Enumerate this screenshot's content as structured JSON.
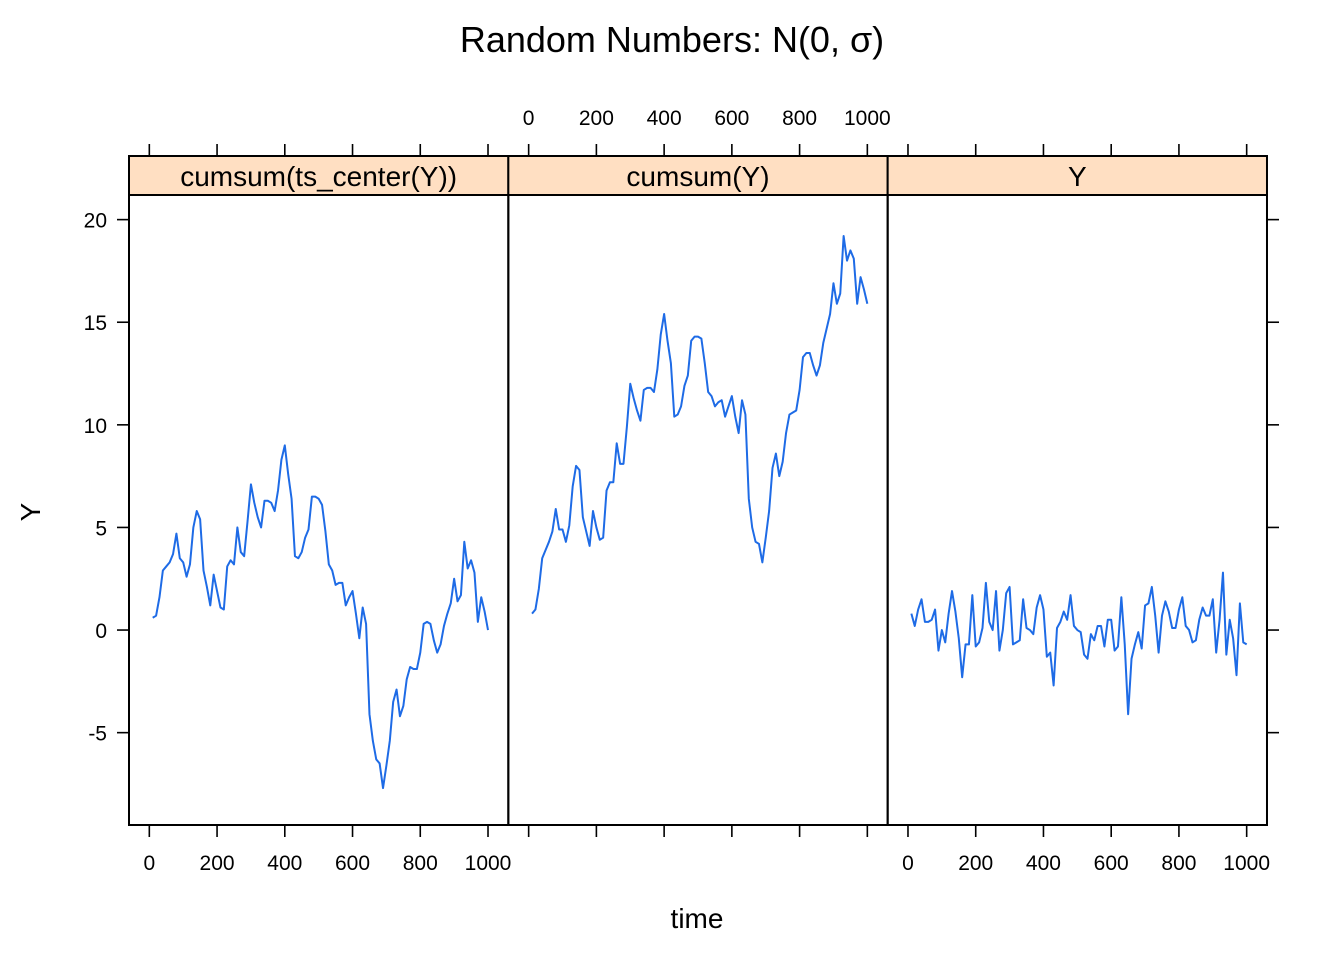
{
  "chart_data": {
    "type": "line",
    "title": "Random Numbers: N(0, σ)",
    "xlabel": "time",
    "ylabel": "Y",
    "xlim": [
      -60,
      1060
    ],
    "ylim": [
      -9.5,
      21.2
    ],
    "x_ticks": [
      0,
      200,
      400,
      600,
      800,
      1000
    ],
    "x_tick_labels": [
      "0",
      "200",
      "400",
      "600",
      "800",
      "1000"
    ],
    "y_ticks": [
      -5,
      0,
      5,
      10,
      15,
      20
    ],
    "y_tick_labels": [
      "-5",
      "0",
      "5",
      "10",
      "15",
      "20"
    ],
    "grid": false,
    "legend": "none",
    "line_color": "#1E6BE6",
    "strip_color": "#FFDFC2",
    "panels": [
      {
        "name": "cumsum(ts_center(Y))",
        "x": [
          10,
          20,
          30,
          40,
          50,
          60,
          70,
          80,
          90,
          100,
          110,
          120,
          130,
          140,
          150,
          160,
          170,
          180,
          190,
          200,
          210,
          220,
          230,
          240,
          250,
          260,
          270,
          280,
          290,
          300,
          310,
          320,
          330,
          340,
          350,
          360,
          370,
          380,
          390,
          400,
          410,
          420,
          430,
          440,
          450,
          460,
          470,
          480,
          490,
          500,
          510,
          520,
          530,
          540,
          550,
          560,
          570,
          580,
          590,
          600,
          610,
          620,
          630,
          640,
          650,
          660,
          670,
          680,
          690,
          700,
          710,
          720,
          730,
          740,
          750,
          760,
          770,
          780,
          790,
          800,
          810,
          820,
          830,
          840,
          850,
          860,
          870,
          880,
          890,
          900,
          910,
          920,
          930,
          940,
          950,
          960,
          970,
          980,
          990,
          1000
        ],
        "y": [
          0.6,
          0.7,
          1.6,
          2.9,
          3.1,
          3.3,
          3.7,
          4.7,
          3.5,
          3.3,
          2.6,
          3.2,
          5.0,
          5.8,
          5.4,
          2.9,
          2.1,
          1.2,
          2.7,
          1.9,
          1.1,
          1.0,
          3.1,
          3.4,
          3.2,
          5.0,
          3.8,
          3.6,
          5.3,
          7.1,
          6.2,
          5.5,
          5.0,
          6.3,
          6.3,
          6.2,
          5.8,
          6.8,
          8.3,
          9.0,
          7.6,
          6.4,
          3.6,
          3.5,
          3.8,
          4.5,
          4.9,
          6.5,
          6.5,
          6.4,
          6.1,
          4.8,
          3.2,
          2.9,
          2.2,
          2.3,
          2.3,
          1.2,
          1.6,
          1.9,
          0.8,
          -0.4,
          1.1,
          0.3,
          -4.1,
          -5.4,
          -6.3,
          -6.5,
          -7.7,
          -6.6,
          -5.4,
          -3.5,
          -2.9,
          -4.2,
          -3.7,
          -2.4,
          -1.8,
          -1.9,
          -1.9,
          -1.1,
          0.3,
          0.4,
          0.3,
          -0.5,
          -1.1,
          -0.7,
          0.2,
          0.8,
          1.3,
          2.5,
          1.4,
          1.7,
          4.3,
          3.0,
          3.4,
          2.8,
          0.4,
          1.6,
          0.9,
          0.0
        ]
      },
      {
        "name": "cumsum(Y)",
        "x": [
          10,
          20,
          30,
          40,
          50,
          60,
          70,
          80,
          90,
          100,
          110,
          120,
          130,
          140,
          150,
          160,
          170,
          180,
          190,
          200,
          210,
          220,
          230,
          240,
          250,
          260,
          270,
          280,
          290,
          300,
          310,
          320,
          330,
          340,
          350,
          360,
          370,
          380,
          390,
          400,
          410,
          420,
          430,
          440,
          450,
          460,
          470,
          480,
          490,
          500,
          510,
          520,
          530,
          540,
          550,
          560,
          570,
          580,
          590,
          600,
          610,
          620,
          630,
          640,
          650,
          660,
          670,
          680,
          690,
          700,
          710,
          720,
          730,
          740,
          750,
          760,
          770,
          780,
          790,
          800,
          810,
          820,
          830,
          840,
          850,
          860,
          870,
          880,
          890,
          900,
          910,
          920,
          930,
          940,
          950,
          960,
          970,
          980,
          990,
          1000
        ],
        "y": [
          0.8,
          1.0,
          2.0,
          3.5,
          3.9,
          4.3,
          4.8,
          5.9,
          4.9,
          4.9,
          4.3,
          5.1,
          7.0,
          8.0,
          7.8,
          5.5,
          4.8,
          4.1,
          5.8,
          5.0,
          4.4,
          4.5,
          6.8,
          7.2,
          7.2,
          9.1,
          8.1,
          8.1,
          9.9,
          12.0,
          11.3,
          10.7,
          10.2,
          11.7,
          11.8,
          11.8,
          11.6,
          12.7,
          14.4,
          15.4,
          14.1,
          13.0,
          10.4,
          10.5,
          10.9,
          11.9,
          12.4,
          14.1,
          14.3,
          14.3,
          14.2,
          13.0,
          11.6,
          11.4,
          10.9,
          11.1,
          11.2,
          10.4,
          10.9,
          11.4,
          10.4,
          9.6,
          11.2,
          10.5,
          6.4,
          5.0,
          4.3,
          4.2,
          3.3,
          4.5,
          5.8,
          7.9,
          8.6,
          7.5,
          8.2,
          9.6,
          10.5,
          10.6,
          10.7,
          11.7,
          13.3,
          13.5,
          13.5,
          12.9,
          12.4,
          12.9,
          14.0,
          14.7,
          15.4,
          16.9,
          15.9,
          16.4,
          19.2,
          18.0,
          18.5,
          18.1,
          15.9,
          17.2,
          16.6,
          15.9
        ]
      },
      {
        "name": "Y",
        "x": [
          10,
          20,
          30,
          40,
          50,
          60,
          70,
          80,
          90,
          100,
          110,
          120,
          130,
          140,
          150,
          160,
          170,
          180,
          190,
          200,
          210,
          220,
          230,
          240,
          250,
          260,
          270,
          280,
          290,
          300,
          310,
          320,
          330,
          340,
          350,
          360,
          370,
          380,
          390,
          400,
          410,
          420,
          430,
          440,
          450,
          460,
          470,
          480,
          490,
          500,
          510,
          520,
          530,
          540,
          550,
          560,
          570,
          580,
          590,
          600,
          610,
          620,
          630,
          640,
          650,
          660,
          670,
          680,
          690,
          700,
          710,
          720,
          730,
          740,
          750,
          760,
          770,
          780,
          790,
          800,
          810,
          820,
          830,
          840,
          850,
          860,
          870,
          880,
          890,
          900,
          910,
          920,
          930,
          940,
          950,
          960,
          970,
          980,
          990,
          1000
        ],
        "y": [
          0.8,
          0.2,
          1.0,
          1.5,
          0.4,
          0.4,
          0.5,
          1.0,
          -1.0,
          -0.0,
          -0.6,
          0.8,
          1.9,
          0.9,
          -0.4,
          -2.3,
          -0.7,
          -0.7,
          1.7,
          -0.8,
          -0.6,
          0.1,
          2.3,
          0.4,
          0.0,
          1.9,
          -1.0,
          0.0,
          1.8,
          2.1,
          -0.7,
          -0.6,
          -0.5,
          1.5,
          0.1,
          -0.0,
          -0.2,
          1.1,
          1.7,
          1.0,
          -1.3,
          -1.1,
          -2.7,
          0.1,
          0.4,
          0.9,
          0.5,
          1.7,
          0.2,
          0.0,
          -0.1,
          -1.2,
          -1.4,
          -0.2,
          -0.5,
          0.2,
          0.2,
          -0.8,
          0.5,
          0.5,
          -1.0,
          -0.8,
          1.6,
          -0.7,
          -4.1,
          -1.4,
          -0.7,
          -0.1,
          -0.9,
          1.2,
          1.3,
          2.1,
          0.7,
          -1.1,
          0.7,
          1.4,
          0.9,
          0.1,
          0.1,
          1.0,
          1.6,
          0.2,
          0.0,
          -0.6,
          -0.5,
          0.5,
          1.1,
          0.7,
          0.7,
          1.5,
          -1.1,
          0.5,
          2.8,
          -1.2,
          0.5,
          -0.4,
          -2.2,
          1.3,
          -0.6,
          -0.7
        ]
      }
    ]
  }
}
